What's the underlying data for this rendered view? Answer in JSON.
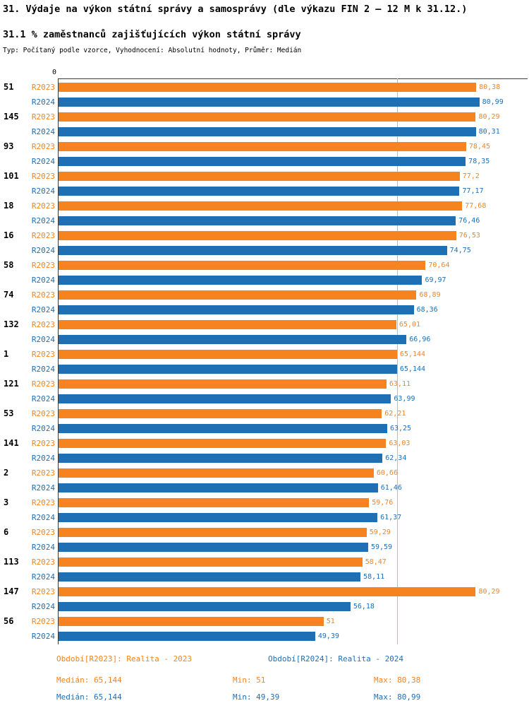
{
  "header": {
    "title": "31. Výdaje na výkon státní správy a samosprávy (dle výkazu FIN 2 – 12 M k 31.12.)",
    "subtitle": "31.1 % zaměstnanců zajišťujících výkon státní správy",
    "typeline": "Typ: Počítaný podle vzorce, Vyhodnocení: Absolutní hodnoty, Průměr: Medián"
  },
  "chart_data": {
    "type": "bar",
    "orientation": "horizontal",
    "title": "31. Výdaje na výkon státní správy a samosprávy (dle výkazu FIN 2 – 12 M k 31.12.)",
    "subtitle": "31.1 % zaměstnanců zajišťujících výkon státní správy",
    "origin_tick": "0",
    "axis_max": 90,
    "xlim": [
      0,
      90
    ],
    "grid": false,
    "legend_position": "bottom",
    "series_names": [
      "R2023",
      "R2024"
    ],
    "series_colors": {
      "R2023": "#F5831F",
      "R2024": "#1F6FB5"
    },
    "median_line_value": 65.144,
    "median_line_color": "#a9c0dc",
    "groups": [
      {
        "id": "51",
        "bars": [
          {
            "series": "R2023",
            "value": 80.38,
            "label": "80,38"
          },
          {
            "series": "R2024",
            "value": 80.99,
            "label": "80,99"
          }
        ]
      },
      {
        "id": "145",
        "bars": [
          {
            "series": "R2023",
            "value": 80.29,
            "label": "80,29"
          },
          {
            "series": "R2024",
            "value": 80.31,
            "label": "80,31"
          }
        ]
      },
      {
        "id": "93",
        "bars": [
          {
            "series": "R2023",
            "value": 78.45,
            "label": "78,45"
          },
          {
            "series": "R2024",
            "value": 78.35,
            "label": "78,35"
          }
        ]
      },
      {
        "id": "101",
        "bars": [
          {
            "series": "R2023",
            "value": 77.2,
            "label": "77,2"
          },
          {
            "series": "R2024",
            "value": 77.17,
            "label": "77,17"
          }
        ]
      },
      {
        "id": "18",
        "bars": [
          {
            "series": "R2023",
            "value": 77.68,
            "label": "77,68"
          },
          {
            "series": "R2024",
            "value": 76.46,
            "label": "76,46"
          }
        ]
      },
      {
        "id": "16",
        "bars": [
          {
            "series": "R2023",
            "value": 76.53,
            "label": "76,53"
          },
          {
            "series": "R2024",
            "value": 74.75,
            "label": "74,75"
          }
        ]
      },
      {
        "id": "58",
        "bars": [
          {
            "series": "R2023",
            "value": 70.64,
            "label": "70,64"
          },
          {
            "series": "R2024",
            "value": 69.97,
            "label": "69,97"
          }
        ]
      },
      {
        "id": "74",
        "bars": [
          {
            "series": "R2023",
            "value": 68.89,
            "label": "68,89"
          },
          {
            "series": "R2024",
            "value": 68.36,
            "label": "68,36"
          }
        ]
      },
      {
        "id": "132",
        "bars": [
          {
            "series": "R2023",
            "value": 65.01,
            "label": "65,01"
          },
          {
            "series": "R2024",
            "value": 66.96,
            "label": "66,96"
          }
        ]
      },
      {
        "id": "1",
        "bars": [
          {
            "series": "R2023",
            "value": 65.144,
            "label": "65,144"
          },
          {
            "series": "R2024",
            "value": 65.144,
            "label": "65,144"
          }
        ]
      },
      {
        "id": "121",
        "bars": [
          {
            "series": "R2023",
            "value": 63.11,
            "label": "63,11"
          },
          {
            "series": "R2024",
            "value": 63.99,
            "label": "63,99"
          }
        ]
      },
      {
        "id": "53",
        "bars": [
          {
            "series": "R2023",
            "value": 62.21,
            "label": "62,21"
          },
          {
            "series": "R2024",
            "value": 63.25,
            "label": "63,25"
          }
        ]
      },
      {
        "id": "141",
        "bars": [
          {
            "series": "R2023",
            "value": 63.03,
            "label": "63,03"
          },
          {
            "series": "R2024",
            "value": 62.34,
            "label": "62,34"
          }
        ]
      },
      {
        "id": "2",
        "bars": [
          {
            "series": "R2023",
            "value": 60.66,
            "label": "60,66"
          },
          {
            "series": "R2024",
            "value": 61.46,
            "label": "61,46"
          }
        ]
      },
      {
        "id": "3",
        "bars": [
          {
            "series": "R2023",
            "value": 59.76,
            "label": "59,76"
          },
          {
            "series": "R2024",
            "value": 61.37,
            "label": "61,37"
          }
        ]
      },
      {
        "id": "6",
        "bars": [
          {
            "series": "R2023",
            "value": 59.29,
            "label": "59,29"
          },
          {
            "series": "R2024",
            "value": 59.59,
            "label": "59,59"
          }
        ]
      },
      {
        "id": "113",
        "bars": [
          {
            "series": "R2023",
            "value": 58.47,
            "label": "58,47"
          },
          {
            "series": "R2024",
            "value": 58.11,
            "label": "58,11"
          }
        ]
      },
      {
        "id": "147",
        "bars": [
          {
            "series": "R2023",
            "value": 80.29,
            "label": "80,29"
          },
          {
            "series": "R2024",
            "value": 56.18,
            "label": "56,18"
          }
        ]
      },
      {
        "id": "56",
        "bars": [
          {
            "series": "R2023",
            "value": 51,
            "label": "51"
          },
          {
            "series": "R2024",
            "value": 49.39,
            "label": "49,39"
          }
        ]
      }
    ]
  },
  "footer": {
    "legend": [
      {
        "series": "R2023",
        "label": "Období[R2023]: Realita - 2023"
      },
      {
        "series": "R2024",
        "label": "Období[R2024]: Realita - 2024"
      }
    ],
    "stats_r2023": {
      "median": "Medián: 65,144",
      "min": "Min: 51",
      "max": "Max: 80,38"
    },
    "stats_r2024": {
      "median": "Medián: 65,144",
      "min": "Min: 49,39",
      "max": "Max: 80,99"
    }
  }
}
